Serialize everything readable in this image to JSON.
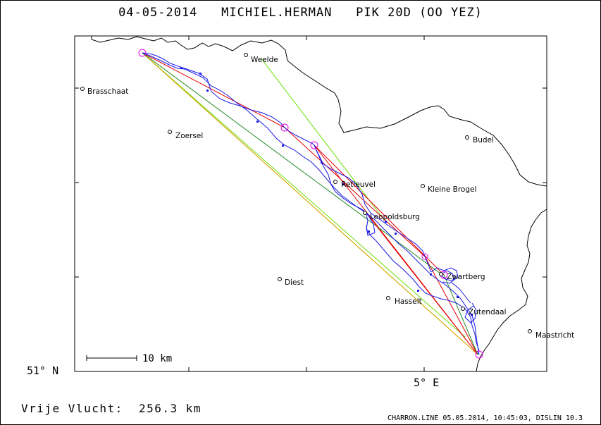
{
  "title": {
    "date": "04-05-2014",
    "pilot": "MICHIEL.HERMAN",
    "glider": "PIK 20D (OO YEZ)"
  },
  "axes": {
    "latitude_label": "51° N",
    "longitude_label": "5° E"
  },
  "scale_bar": {
    "label": "10 km"
  },
  "cities": [
    {
      "name": "Weelde"
    },
    {
      "name": "Brasschaat"
    },
    {
      "name": "Zoersel"
    },
    {
      "name": "Budel"
    },
    {
      "name": "Retieuvel"
    },
    {
      "name": "Kleine Brogel"
    },
    {
      "name": "Leopoldsburg"
    },
    {
      "name": "Zwartberg"
    },
    {
      "name": "Diest"
    },
    {
      "name": "Hasselt"
    },
    {
      "name": "Zutendaal"
    },
    {
      "name": "Maastricht"
    }
  ],
  "flight": {
    "label": "Vrije Vlucht:",
    "distance": "256.3 km"
  },
  "footer": {
    "credit": "CHARRON.LINE 05.05.2014, 10:45:03, DISLIN 10.3"
  },
  "colors": {
    "track": "#1a1ae6",
    "task_leg": "#e60000",
    "fai_sector": "#66dd00",
    "alt_leg": "#228b22",
    "start_leg": "#e6a000",
    "turnpoint": "#e600e6"
  }
}
